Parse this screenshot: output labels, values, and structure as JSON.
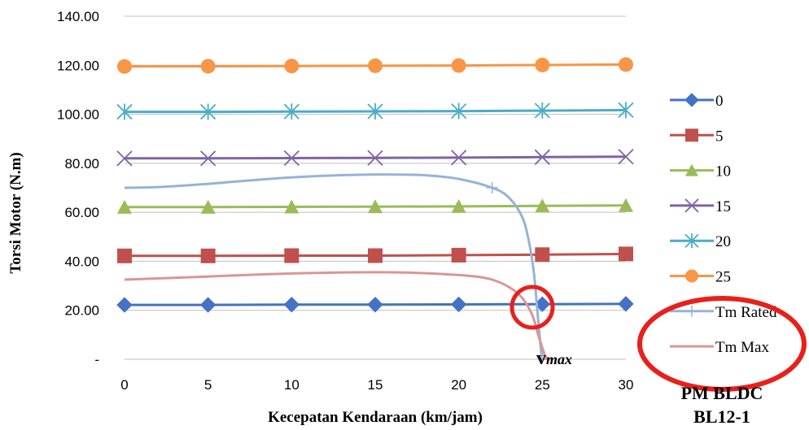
{
  "chart_data": {
    "type": "line",
    "xlabel": "Kecepatan Kendaraan (km/jam)",
    "ylabel": "Torsi Motor (N.m)",
    "xlim": [
      0,
      30
    ],
    "ylim": [
      0,
      140
    ],
    "x_ticks": [
      "0",
      "5",
      "10",
      "15",
      "20",
      "25",
      "30"
    ],
    "y_ticks": [
      "-",
      "20.00",
      "40.00",
      "60.00",
      "80.00",
      "100.00",
      "120.00",
      "140.00"
    ],
    "grid": "horizontal",
    "legend_position": "right",
    "series": [
      {
        "name": "0",
        "color": "#4472C4",
        "marker": "diamond",
        "x": [
          0,
          5,
          10,
          15,
          20,
          25,
          30
        ],
        "y": [
          22.2,
          22.2,
          22.3,
          22.3,
          22.4,
          22.5,
          22.6
        ]
      },
      {
        "name": "5",
        "color": "#C0504D",
        "marker": "square",
        "x": [
          0,
          5,
          10,
          15,
          20,
          25,
          30
        ],
        "y": [
          42.2,
          42.2,
          42.3,
          42.3,
          42.5,
          42.7,
          43.0
        ]
      },
      {
        "name": "10",
        "color": "#9BBB59",
        "marker": "triangle",
        "x": [
          0,
          5,
          10,
          15,
          20,
          25,
          30
        ],
        "y": [
          62.1,
          62.1,
          62.2,
          62.3,
          62.4,
          62.6,
          62.8
        ]
      },
      {
        "name": "15",
        "color": "#8064A2",
        "marker": "x",
        "x": [
          0,
          5,
          10,
          15,
          20,
          25,
          30
        ],
        "y": [
          82.0,
          82.0,
          82.1,
          82.2,
          82.3,
          82.5,
          82.7
        ]
      },
      {
        "name": "20",
        "color": "#4BACC6",
        "marker": "asterisk",
        "x": [
          0,
          5,
          10,
          15,
          20,
          25,
          30
        ],
        "y": [
          101.0,
          101.0,
          101.1,
          101.2,
          101.3,
          101.5,
          101.7
        ]
      },
      {
        "name": "25",
        "color": "#F79646",
        "marker": "circle",
        "x": [
          0,
          5,
          10,
          15,
          20,
          25,
          30
        ],
        "y": [
          119.5,
          119.6,
          119.7,
          119.8,
          119.9,
          120.1,
          120.3
        ]
      },
      {
        "name": "Tm Rated",
        "color": "#95B3D7",
        "marker": "plus",
        "x": [
          0,
          2,
          5,
          8,
          11,
          14,
          16,
          18,
          20,
          22,
          23,
          23.8,
          24.2,
          24.5,
          24.7,
          24.9,
          25.0
        ],
        "y": [
          70.0,
          70.3,
          71.6,
          73.3,
          74.6,
          75.3,
          75.4,
          75.1,
          73.6,
          70.0,
          66.0,
          58.0,
          48.0,
          35.0,
          20.0,
          5.0,
          0.0
        ]
      },
      {
        "name": "Tm Max",
        "color": "#D99694",
        "marker": "dash",
        "x": [
          0,
          4,
          8,
          12,
          16,
          19,
          21,
          22,
          23,
          23.8,
          24.4,
          24.8,
          25.2,
          25.5
        ],
        "y": [
          32.5,
          33.5,
          34.6,
          35.3,
          35.5,
          34.8,
          33.8,
          32.5,
          29.5,
          25.0,
          18.0,
          9.0,
          1.0,
          0.0
        ]
      }
    ],
    "annotations": [
      {
        "text": "v",
        "subscript": "max",
        "x": 26.3,
        "y": 4
      }
    ],
    "caption_lines": [
      "PM BLDC",
      "BL12-1"
    ]
  }
}
